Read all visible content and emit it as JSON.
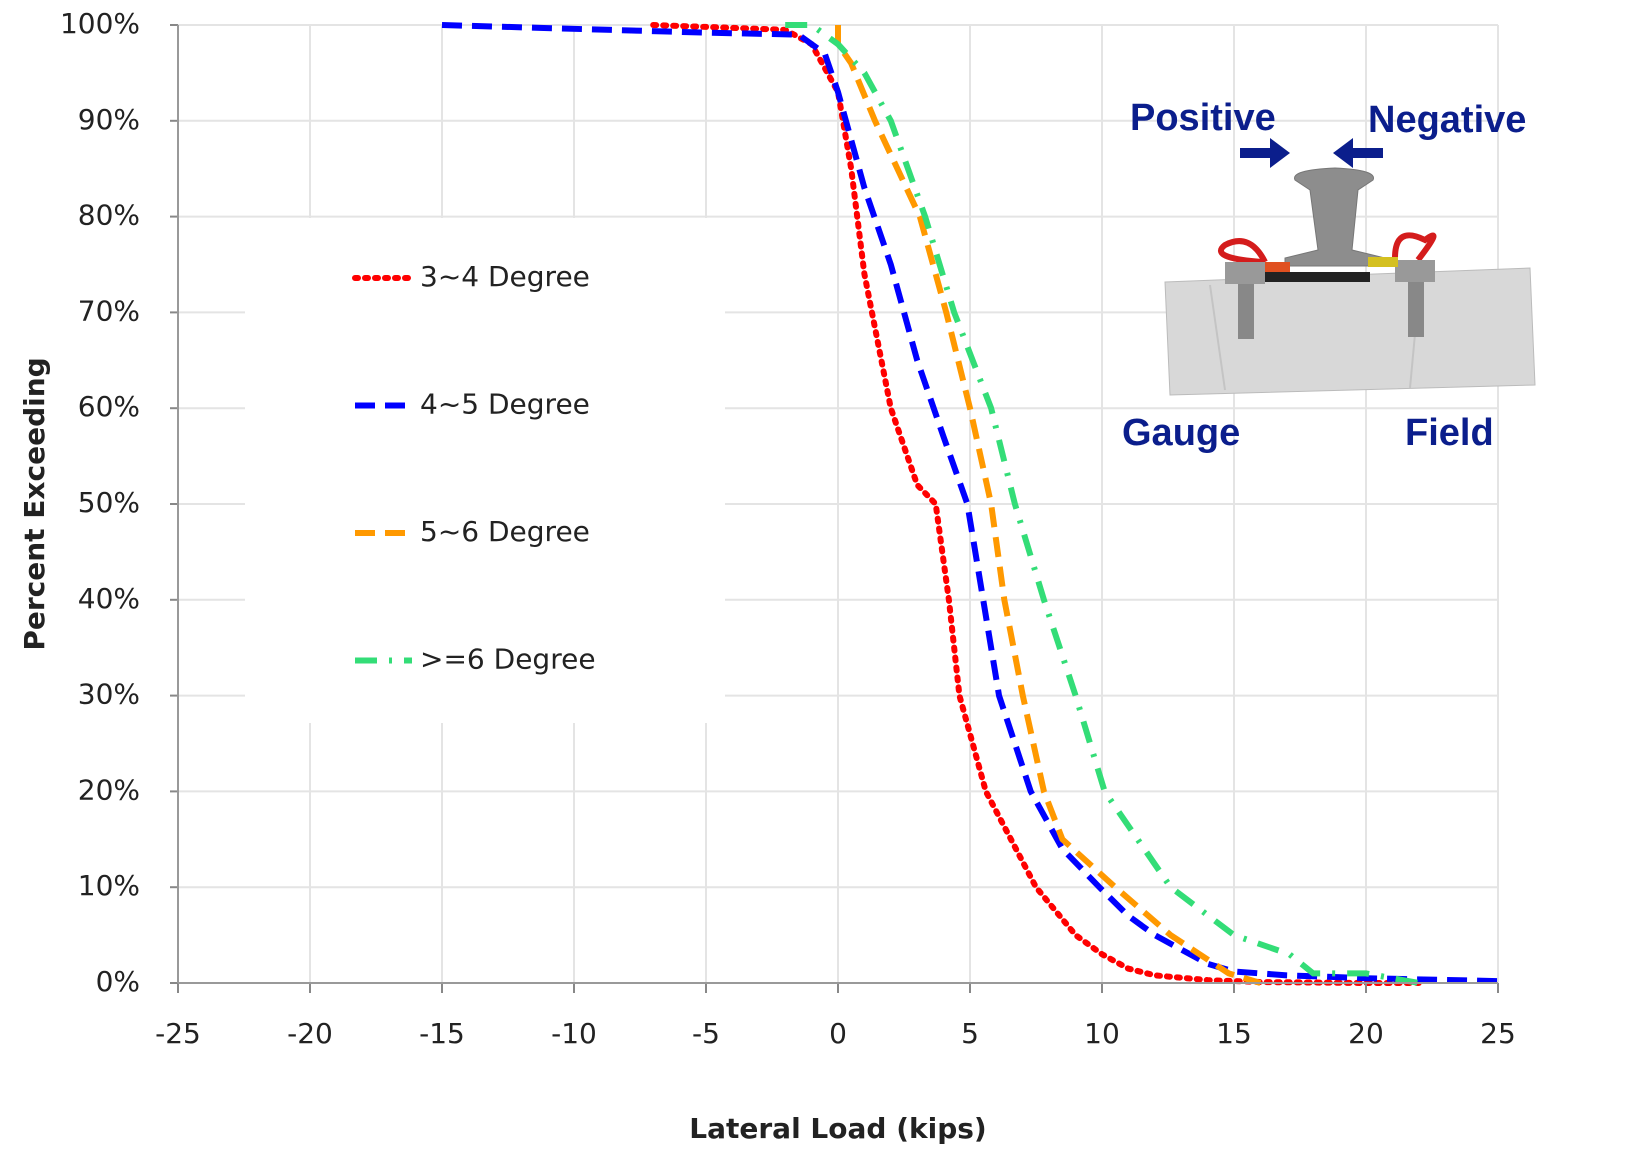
{
  "chart_data": {
    "type": "line",
    "xlabel": "Lateral Load (kips)",
    "ylabel": "Percent Exceeding",
    "xlim": [
      -25,
      25
    ],
    "ylim": [
      0,
      100
    ],
    "xticks": [
      -25,
      -20,
      -15,
      -10,
      -5,
      0,
      5,
      10,
      15,
      20,
      25
    ],
    "yticks": [
      {
        "value": 0,
        "label": "0%"
      },
      {
        "value": 10,
        "label": "10%"
      },
      {
        "value": 20,
        "label": "20%"
      },
      {
        "value": 30,
        "label": "30%"
      },
      {
        "value": 40,
        "label": "40%"
      },
      {
        "value": 50,
        "label": "50%"
      },
      {
        "value": 60,
        "label": "60%"
      },
      {
        "value": 70,
        "label": "70%"
      },
      {
        "value": 80,
        "label": "80%"
      },
      {
        "value": 90,
        "label": "90%"
      },
      {
        "value": 100,
        "label": "100%"
      }
    ],
    "grid": true,
    "legend": "left",
    "series": [
      {
        "name": "3~4 Degree",
        "color": "#ff0000",
        "linestyle": "dotted",
        "x": [
          -7,
          -2,
          -1,
          0,
          0.5,
          1,
          1.5,
          2,
          3,
          3.7,
          4.2,
          4.6,
          5.6,
          7.5,
          9,
          10,
          11,
          12,
          14,
          16,
          20,
          22
        ],
        "values": [
          100,
          99.5,
          98,
          93,
          85,
          74,
          67,
          60,
          52,
          50,
          40,
          30,
          20,
          10,
          5,
          3,
          1.5,
          0.8,
          0.3,
          0.1,
          0,
          0
        ]
      },
      {
        "name": "4~5 Degree",
        "color": "#0000ff",
        "linestyle": "dashed",
        "x": [
          -15,
          -5,
          -1.5,
          -0.5,
          0,
          0.5,
          1,
          2,
          2.5,
          3,
          4,
          4.9,
          5.5,
          6.1,
          7.3,
          8.5,
          9.9,
          11,
          12,
          13,
          14,
          15,
          17,
          20,
          25
        ],
        "values": [
          100,
          99.2,
          99,
          97,
          93,
          88,
          83,
          75,
          70,
          65,
          57,
          50,
          40,
          30,
          20,
          14,
          10,
          7,
          5,
          3.5,
          2,
          1.2,
          0.8,
          0.5,
          0.2
        ]
      },
      {
        "name": "5~6 Degree",
        "color": "#ff9900",
        "linestyle": "dashed",
        "x": [
          0,
          0,
          0.5,
          1.4,
          3.1,
          4.1,
          5,
          5.8,
          6.3,
          7,
          7.8,
          8.5,
          10.5,
          12.6,
          14.8,
          16
        ],
        "values": [
          100,
          98,
          96,
          90,
          80,
          70,
          60,
          50,
          40,
          30,
          20,
          15,
          10,
          5,
          1,
          0
        ]
      },
      {
        "name": ">=6 Degree",
        "color": "#33dd77",
        "linestyle": "dashdot",
        "x": [
          -2,
          -1,
          0,
          1,
          2,
          3.3,
          4.4,
          5.8,
          6.7,
          7.8,
          9,
          10.1,
          12.6,
          15,
          17.1,
          18,
          20,
          22
        ],
        "values": [
          100,
          100,
          98,
          95,
          90,
          80,
          70,
          60,
          50,
          40,
          30,
          20,
          10,
          5,
          3,
          1,
          1,
          0
        ]
      }
    ],
    "annotations": [
      "Positive",
      "Negative",
      "Gauge",
      "Field"
    ]
  }
}
